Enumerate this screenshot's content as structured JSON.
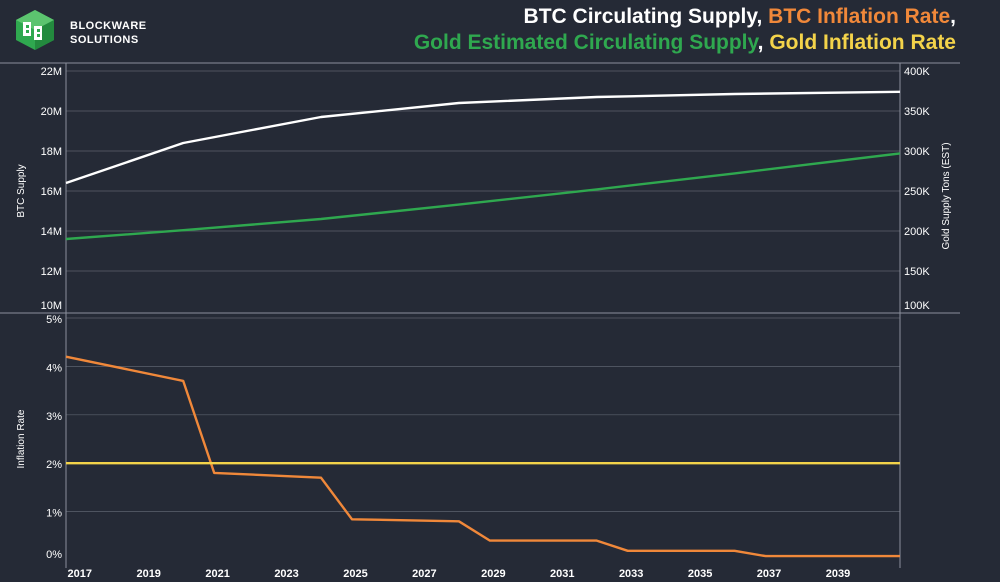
{
  "brand": {
    "line1": "BLOCKWARE",
    "line2": "SOLUTIONS",
    "logo_colors": [
      "#2fa84f",
      "#ffffff"
    ]
  },
  "title": {
    "line1": [
      {
        "text": "BTC Circulating Supply",
        "color": "white"
      },
      {
        "text": ", ",
        "color": "sep"
      },
      {
        "text": "BTC Inflation Rate",
        "color": "orange"
      },
      {
        "text": ",",
        "color": "sep"
      }
    ],
    "line2": [
      {
        "text": "Gold Estimated Circulating Supply",
        "color": "green"
      },
      {
        "text": ", ",
        "color": "sep"
      },
      {
        "text": "Gold Inflation Rate",
        "color": "yellow"
      }
    ]
  },
  "colors": {
    "background": "#252a36",
    "grid": "#8a8f9c",
    "text": "#ffffff",
    "btc_supply": "#ffffff",
    "gold_supply": "#2fa84f",
    "btc_inflation": "#f0883a",
    "gold_inflation": "#f3d34a"
  },
  "chart_data": [
    {
      "type": "line",
      "ylabel": "BTC Supply",
      "y2label": "Gold Supply Tons (EST)",
      "xlim": [
        2016.6,
        2040.8
      ],
      "ylim": [
        10,
        22
      ],
      "y2lim": [
        100,
        400
      ],
      "yticks": [
        10,
        12,
        14,
        16,
        18,
        20,
        22
      ],
      "ytick_labels": [
        "10M",
        "12M",
        "14M",
        "16M",
        "18M",
        "20M",
        "22M"
      ],
      "y2ticks": [
        100,
        150,
        200,
        250,
        300,
        350,
        400
      ],
      "y2tick_labels": [
        "100K",
        "150K",
        "200K",
        "250K",
        "300K",
        "350K",
        "400K"
      ],
      "grid": true,
      "series": [
        {
          "name": "BTC Circulating Supply",
          "axis": "left",
          "x": [
            2016.6,
            2020,
            2024,
            2028,
            2032,
            2036,
            2040.8
          ],
          "values": [
            16.4,
            18.4,
            19.7,
            20.4,
            20.7,
            20.85,
            20.96
          ]
        },
        {
          "name": "Gold Estimated Circulating Supply",
          "axis": "right",
          "x": [
            2016.6,
            2020,
            2024,
            2028,
            2032,
            2036,
            2040.8
          ],
          "values": [
            190,
            201,
            215,
            233,
            252,
            272,
            297
          ]
        }
      ]
    },
    {
      "type": "line",
      "ylabel": "Inflation Rate",
      "xlim": [
        2016.6,
        2040.8
      ],
      "ylim": [
        0,
        5
      ],
      "yticks": [
        0,
        1,
        2,
        3,
        4,
        5
      ],
      "ytick_labels": [
        "0%",
        "1%",
        "2%",
        "3%",
        "4%",
        "5%"
      ],
      "xticks": [
        2017,
        2019,
        2021,
        2023,
        2025,
        2027,
        2029,
        2031,
        2033,
        2035,
        2037,
        2039
      ],
      "xtick_labels": [
        "2017",
        "2019",
        "2021",
        "2023",
        "2025",
        "2027",
        "2029",
        "2031",
        "2033",
        "2035",
        "2037",
        "2039"
      ],
      "grid": true,
      "series": [
        {
          "name": "BTC Inflation Rate",
          "x": [
            2016.6,
            2020,
            2020.9,
            2024,
            2024.9,
            2028,
            2028.9,
            2032,
            2032.9,
            2036,
            2036.9,
            2040.8
          ],
          "values": [
            4.2,
            3.7,
            1.8,
            1.7,
            0.84,
            0.8,
            0.4,
            0.4,
            0.19,
            0.19,
            0.08,
            0.08
          ]
        },
        {
          "name": "Gold Inflation Rate",
          "x": [
            2016.6,
            2040.8
          ],
          "values": [
            2.0,
            2.0
          ]
        }
      ]
    }
  ]
}
